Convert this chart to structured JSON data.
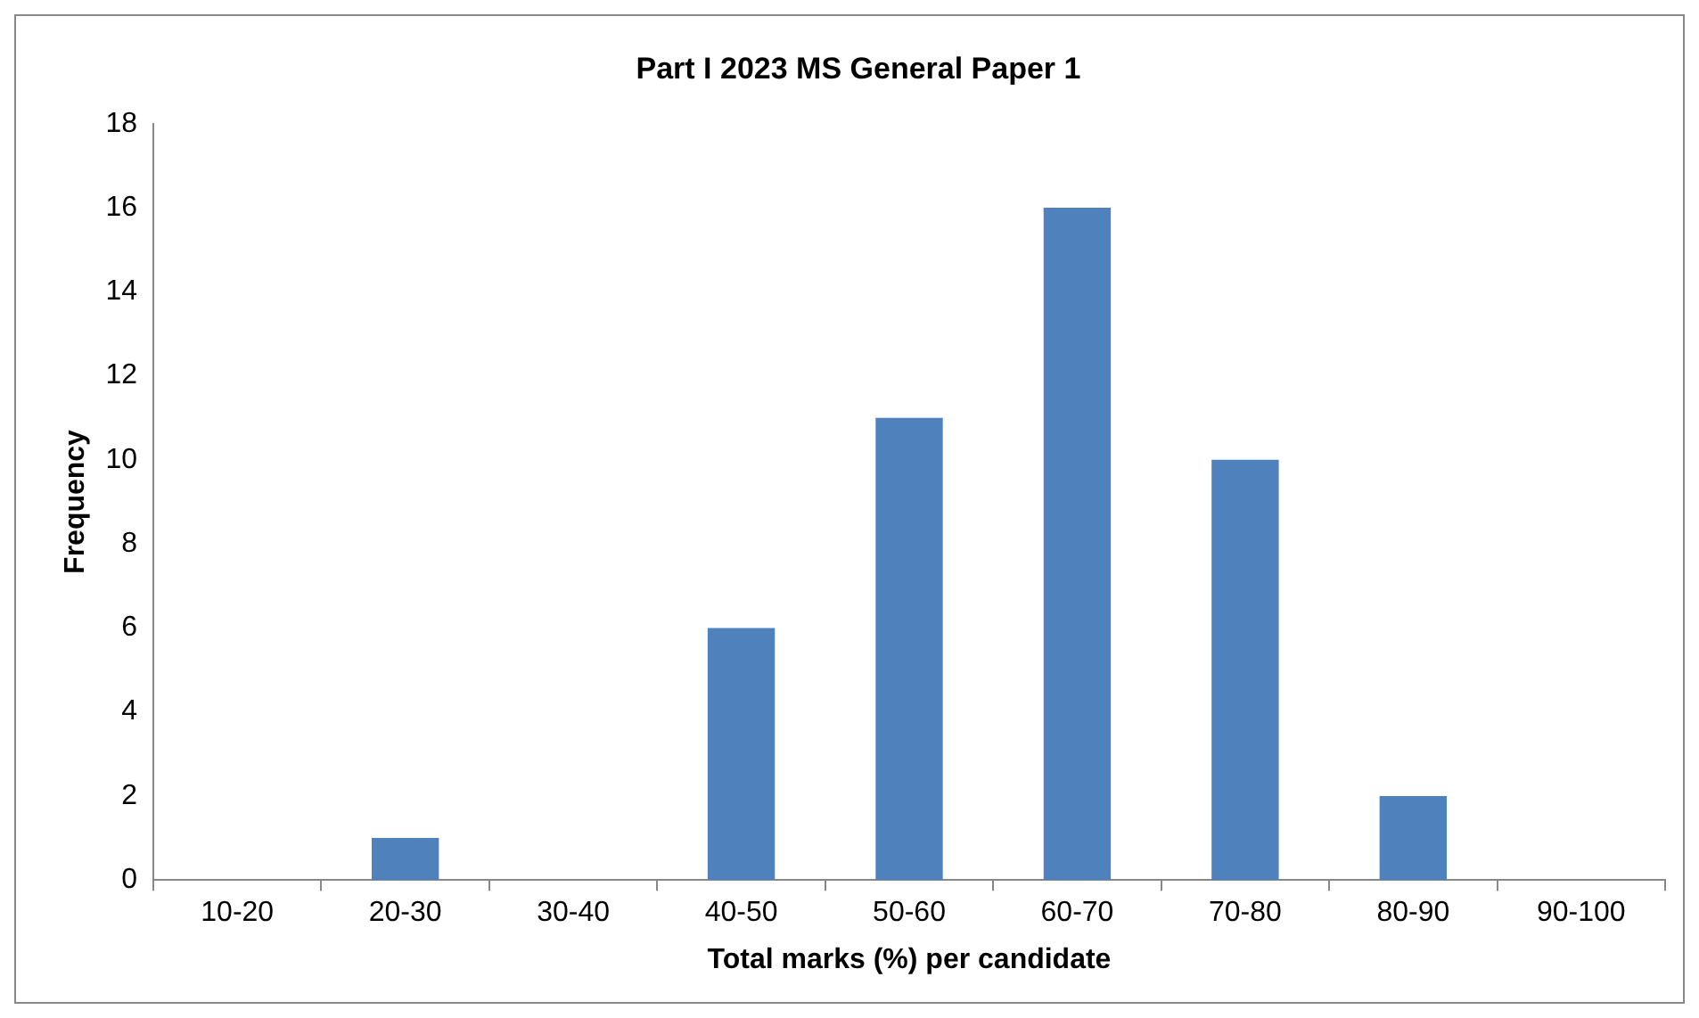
{
  "chart_data": {
    "type": "bar",
    "title": "Part I 2023 MS General Paper 1",
    "xlabel": "Total marks (%) per candidate",
    "ylabel": "Frequency",
    "categories": [
      "10-20",
      "20-30",
      "30-40",
      "40-50",
      "50-60",
      "60-70",
      "70-80",
      "80-90",
      "90-100"
    ],
    "values": [
      0,
      1,
      0,
      6,
      11,
      16,
      10,
      2,
      0
    ],
    "color": "#4f81bd",
    "ylim": [
      0,
      18
    ],
    "yticks": [
      0,
      2,
      4,
      6,
      8,
      10,
      12,
      14,
      16,
      18
    ],
    "grid": false,
    "legend": false
  }
}
